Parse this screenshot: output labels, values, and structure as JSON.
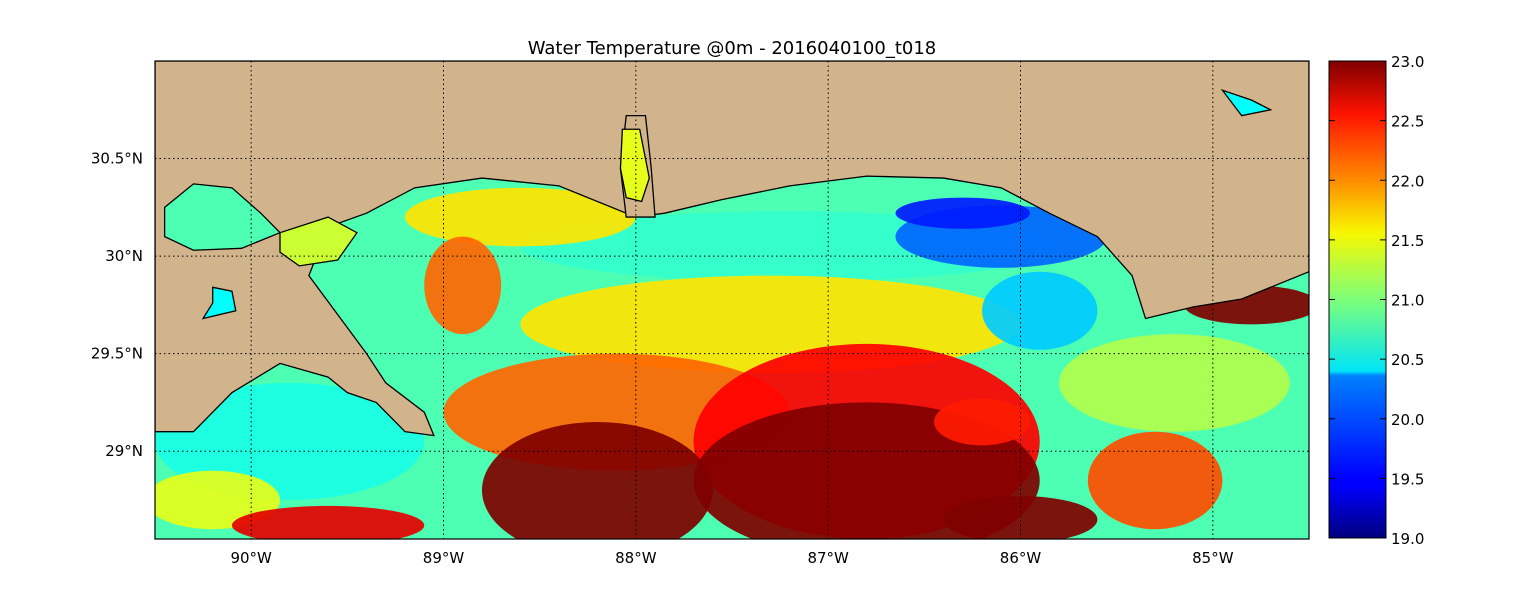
{
  "chart_data": {
    "type": "heatmap",
    "title": "Water Temperature @0m - 2016040100_t018",
    "xlabel": "",
    "ylabel": "",
    "xlim": [
      -90.5,
      -84.5
    ],
    "ylim": [
      28.55,
      31.0
    ],
    "x_ticks": [
      -90,
      -89,
      -88,
      -87,
      -86,
      -85
    ],
    "x_tick_labels": [
      "90°W",
      "89°W",
      "88°W",
      "87°W",
      "86°W",
      "85°W"
    ],
    "y_ticks": [
      30.5,
      30.0,
      29.5,
      29.0
    ],
    "y_tick_labels": [
      "30.5°N",
      "30°N",
      "29.5°N",
      "29°N"
    ],
    "grid": true,
    "colormap": "jet",
    "land_color": "#d2b48c",
    "colorbar": {
      "vmin": 19.0,
      "vmax": 23.0,
      "ticks": [
        23.0,
        22.5,
        22.0,
        21.5,
        21.0,
        20.5,
        20.0,
        19.5,
        19.0
      ],
      "tick_labels": [
        "23.0",
        "22.5",
        "22.0",
        "21.5",
        "21.0",
        "20.5",
        "20.0",
        "19.5",
        "19.0"
      ]
    },
    "land_regions": [
      {
        "name": "north-coast",
        "points": [
          [
            -90.5,
            31.0
          ],
          [
            -84.5,
            31.0
          ],
          [
            -84.5,
            29.92
          ],
          [
            -84.85,
            29.78
          ],
          [
            -85.1,
            29.74
          ],
          [
            -85.35,
            29.68
          ],
          [
            -85.42,
            29.9
          ],
          [
            -85.6,
            30.1
          ],
          [
            -85.85,
            30.22
          ],
          [
            -86.1,
            30.35
          ],
          [
            -86.4,
            30.4
          ],
          [
            -86.8,
            30.41
          ],
          [
            -87.2,
            30.36
          ],
          [
            -87.55,
            30.29
          ],
          [
            -87.85,
            30.22
          ],
          [
            -88.0,
            30.2
          ],
          [
            -88.4,
            30.36
          ],
          [
            -88.8,
            30.4
          ],
          [
            -89.15,
            30.35
          ],
          [
            -89.4,
            30.22
          ],
          [
            -89.6,
            30.15
          ],
          [
            -89.7,
            29.9
          ],
          [
            -89.55,
            29.7
          ],
          [
            -89.4,
            29.5
          ],
          [
            -89.3,
            29.35
          ],
          [
            -89.1,
            29.2
          ],
          [
            -89.05,
            29.08
          ],
          [
            -89.2,
            29.1
          ],
          [
            -89.35,
            29.25
          ],
          [
            -89.5,
            29.3
          ],
          [
            -89.6,
            29.38
          ],
          [
            -89.85,
            29.45
          ],
          [
            -90.1,
            29.3
          ],
          [
            -90.3,
            29.1
          ],
          [
            -90.5,
            29.1
          ]
        ]
      },
      {
        "name": "mobile-bay-land",
        "points": [
          [
            -88.05,
            30.72
          ],
          [
            -87.95,
            30.72
          ],
          [
            -87.92,
            30.45
          ],
          [
            -87.9,
            30.2
          ],
          [
            -88.05,
            30.2
          ],
          [
            -88.08,
            30.45
          ]
        ]
      }
    ],
    "water_regions": [
      {
        "name": "lake-pontchartrain",
        "value": 20.8,
        "points": [
          [
            -90.45,
            30.25
          ],
          [
            -90.3,
            30.37
          ],
          [
            -90.1,
            30.35
          ],
          [
            -89.95,
            30.22
          ],
          [
            -89.85,
            30.12
          ],
          [
            -90.05,
            30.04
          ],
          [
            -90.3,
            30.03
          ],
          [
            -90.45,
            30.1
          ]
        ]
      },
      {
        "name": "lake-borgne",
        "value": 21.3,
        "points": [
          [
            -89.85,
            30.12
          ],
          [
            -89.6,
            30.2
          ],
          [
            -89.45,
            30.12
          ],
          [
            -89.55,
            29.98
          ],
          [
            -89.75,
            29.95
          ],
          [
            -89.85,
            30.02
          ]
        ]
      },
      {
        "name": "mobile-bay",
        "value": 21.4,
        "points": [
          [
            -88.07,
            30.65
          ],
          [
            -87.98,
            30.65
          ],
          [
            -87.93,
            30.4
          ],
          [
            -87.97,
            30.28
          ],
          [
            -88.05,
            30.3
          ],
          [
            -88.08,
            30.45
          ]
        ]
      },
      {
        "name": "inland-lake",
        "value": 20.5,
        "points": [
          [
            -90.2,
            29.84
          ],
          [
            -90.1,
            29.82
          ],
          [
            -90.08,
            29.72
          ],
          [
            -90.25,
            29.68
          ],
          [
            -90.2,
            29.76
          ]
        ]
      },
      {
        "name": "inland-pond",
        "value": 20.5,
        "points": [
          [
            -84.95,
            30.85
          ],
          [
            -84.85,
            30.72
          ],
          [
            -84.7,
            30.75
          ],
          [
            -84.8,
            30.8
          ]
        ]
      }
    ],
    "temperature_field": [
      {
        "type": "rect",
        "lon": [
          -90.5,
          -84.5
        ],
        "lat": [
          28.55,
          31.0
        ],
        "value": 20.8
      },
      {
        "type": "blob",
        "lon": -87.2,
        "lat": 30.05,
        "rlon": 1.4,
        "rlat": 0.18,
        "value": 20.7
      },
      {
        "type": "blob",
        "lon": -88.6,
        "lat": 30.2,
        "rlon": 0.6,
        "rlat": 0.15,
        "value": 21.6
      },
      {
        "type": "blob",
        "lon": -88.9,
        "lat": 29.85,
        "rlon": 0.2,
        "rlat": 0.25,
        "value": 22.1
      },
      {
        "type": "blob",
        "lon": -87.3,
        "lat": 29.65,
        "rlon": 1.3,
        "rlat": 0.25,
        "value": 21.6
      },
      {
        "type": "blob",
        "lon": -86.1,
        "lat": 30.1,
        "rlon": 0.55,
        "rlat": 0.16,
        "value": 19.9
      },
      {
        "type": "blob",
        "lon": -86.3,
        "lat": 30.22,
        "rlon": 0.35,
        "rlat": 0.08,
        "value": 19.6
      },
      {
        "type": "blob",
        "lon": -85.9,
        "lat": 29.72,
        "rlon": 0.3,
        "rlat": 0.2,
        "value": 20.3
      },
      {
        "type": "blob",
        "lon": -85.2,
        "lat": 29.35,
        "rlon": 0.6,
        "rlat": 0.25,
        "value": 21.2
      },
      {
        "type": "blob",
        "lon": -89.8,
        "lat": 29.05,
        "rlon": 0.7,
        "rlat": 0.3,
        "value": 20.6
      },
      {
        "type": "blob",
        "lon": -90.2,
        "lat": 28.75,
        "rlon": 0.35,
        "rlat": 0.15,
        "value": 21.4
      },
      {
        "type": "blob",
        "lon": -88.1,
        "lat": 29.2,
        "rlon": 0.9,
        "rlat": 0.3,
        "value": 22.1
      },
      {
        "type": "blob",
        "lon": -86.8,
        "lat": 29.05,
        "rlon": 0.9,
        "rlat": 0.5,
        "value": 22.5
      },
      {
        "type": "blob",
        "lon": -85.3,
        "lat": 28.85,
        "rlon": 0.35,
        "rlat": 0.25,
        "value": 22.2
      },
      {
        "type": "blob",
        "lon": -89.6,
        "lat": 28.62,
        "rlon": 0.5,
        "rlat": 0.1,
        "value": 22.6
      },
      {
        "type": "blob",
        "lon": -88.2,
        "lat": 28.8,
        "rlon": 0.6,
        "rlat": 0.35,
        "value": 23.0
      },
      {
        "type": "blob",
        "lon": -86.8,
        "lat": 28.85,
        "rlon": 0.9,
        "rlat": 0.4,
        "value": 23.0
      },
      {
        "type": "blob",
        "lon": -86.0,
        "lat": 28.65,
        "rlon": 0.4,
        "rlat": 0.12,
        "value": 23.0
      },
      {
        "type": "blob",
        "lon": -86.2,
        "lat": 29.15,
        "rlon": 0.25,
        "rlat": 0.12,
        "value": 22.4
      },
      {
        "type": "blob",
        "lon": -84.8,
        "lat": 29.75,
        "rlon": 0.35,
        "rlat": 0.1,
        "value": 23.0
      }
    ]
  }
}
